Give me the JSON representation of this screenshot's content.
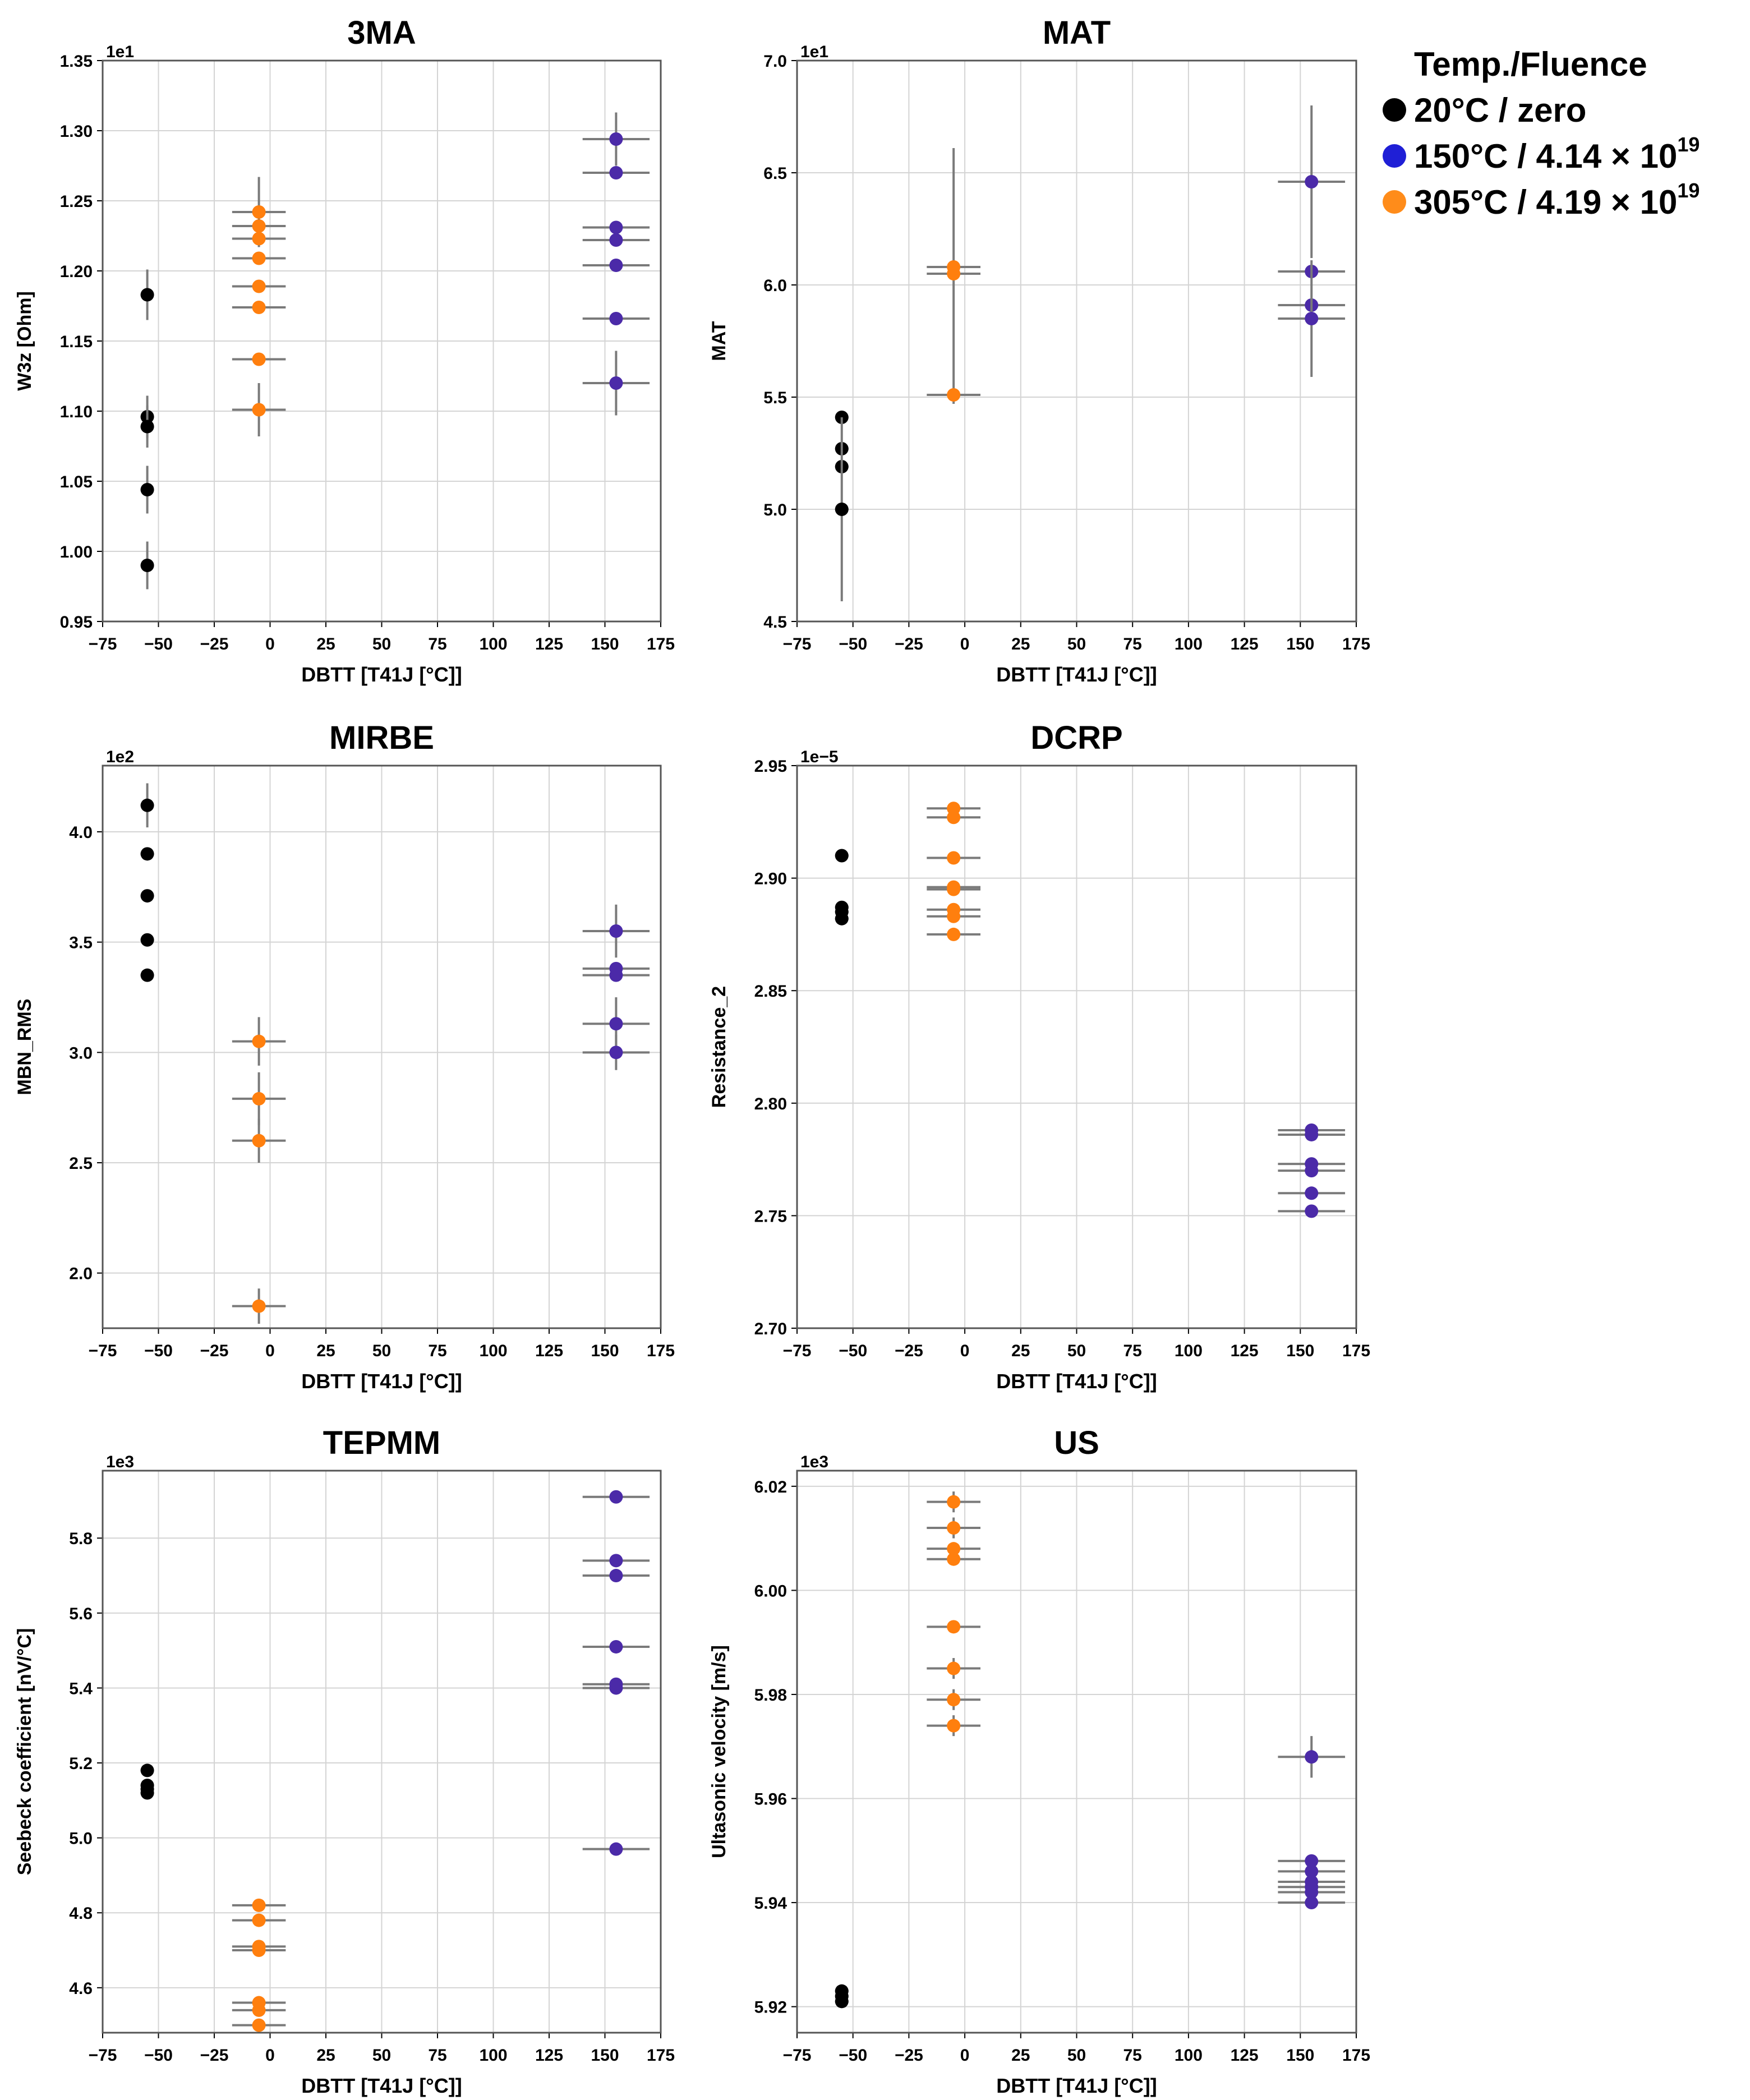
{
  "legend": {
    "title": "Temp./Fluence",
    "items": [
      {
        "label_text": "20°C / zero",
        "color": "#000000"
      },
      {
        "label_text": "150°C / 4.14 × 10",
        "sup": "19",
        "color": "#1f1fd6"
      },
      {
        "label_text": "305°C / 4.19 × 10",
        "sup": "19",
        "color": "#ff8c1a"
      }
    ]
  },
  "colors": {
    "g20": "#000000",
    "g150": "#4b2aa8",
    "g305": "#ff7f0e",
    "errbar": "#7a7a7a",
    "grid": "#d4d4d4"
  },
  "chart_data": [
    {
      "id": "3ma",
      "type": "scatter",
      "title": "3MA",
      "xlabel": "DBTT [T41J [°C]]",
      "ylabel": "W3z [Ohm]",
      "exponent_label": "1e1",
      "xlim": [
        -75,
        175
      ],
      "ylim": [
        0.95,
        1.35
      ],
      "xticks": [
        -75,
        -50,
        -25,
        0,
        25,
        50,
        75,
        100,
        125,
        150,
        175
      ],
      "xtick_labels": [
        "−75",
        "−50",
        "−25",
        "0",
        "25",
        "50",
        "75",
        "100",
        "125",
        "150",
        "175"
      ],
      "yticks": [
        0.95,
        1.0,
        1.05,
        1.1,
        1.15,
        1.2,
        1.25,
        1.3,
        1.35
      ],
      "ytick_labels": [
        "0.95",
        "1.00",
        "1.05",
        "1.10",
        "1.15",
        "1.20",
        "1.25",
        "1.30",
        "1.35"
      ],
      "series": [
        {
          "name": "20°C / zero",
          "color_key": "g20",
          "x": -55,
          "xerr": 3,
          "y": [
            1.183,
            1.096,
            1.089,
            1.044,
            0.99
          ],
          "yerr": [
            0.018,
            0.015,
            0.015,
            0.017,
            0.017
          ]
        },
        {
          "name": "305°C / 4.19 × 10^19",
          "color_key": "g305",
          "x": -5,
          "xerr": 12,
          "y": [
            1.242,
            1.232,
            1.223,
            1.209,
            1.189,
            1.174,
            1.137,
            1.101
          ],
          "yerr": [
            0.025,
            0,
            0,
            0,
            0,
            0,
            0,
            0.019
          ]
        },
        {
          "name": "150°C / 4.14 × 10^19",
          "color_key": "g305b",
          "x": 155,
          "xerr": 15,
          "y": [
            1.294,
            1.27,
            1.231,
            1.222,
            1.204,
            1.166,
            1.12
          ],
          "yerr": [
            0.019,
            0,
            0,
            0,
            0,
            0,
            0.023
          ]
        }
      ]
    },
    {
      "id": "mat",
      "type": "scatter",
      "title": "MAT",
      "xlabel": "DBTT [T41J [°C]]",
      "ylabel": "MAT",
      "exponent_label": "1e1",
      "xlim": [
        -75,
        175
      ],
      "ylim": [
        4.5,
        7.0
      ],
      "xticks": [
        -75,
        -50,
        -25,
        0,
        25,
        50,
        75,
        100,
        125,
        150,
        175
      ],
      "xtick_labels": [
        "−75",
        "−50",
        "−25",
        "0",
        "25",
        "50",
        "75",
        "100",
        "125",
        "150",
        "175"
      ],
      "yticks": [
        4.5,
        5.0,
        5.5,
        6.0,
        6.5,
        7.0
      ],
      "ytick_labels": [
        "4.5",
        "5.0",
        "5.5",
        "6.0",
        "6.5",
        "7.0"
      ],
      "series": [
        {
          "name": "20°C / zero",
          "color_key": "g20",
          "x": -55,
          "xerr": 3,
          "y": [
            5.41,
            5.27,
            5.19,
            5.0
          ],
          "yerr": [
            0,
            0,
            0,
            0.41
          ]
        },
        {
          "name": "305°C / 4.19 × 10^19",
          "color_key": "g305",
          "x": -5,
          "xerr": 12,
          "y": [
            6.08,
            6.05,
            5.51
          ],
          "yerr": [
            0.53,
            0,
            0.04
          ]
        },
        {
          "name": "150°C / 4.14 × 10^19",
          "color_key": "g150",
          "x": 155,
          "xerr": 15,
          "y": [
            6.46,
            6.06,
            5.91,
            5.85
          ],
          "yerr": [
            0.34,
            0,
            0,
            0.26
          ]
        }
      ]
    },
    {
      "id": "mirbe",
      "type": "scatter",
      "title": "MIRBE",
      "xlabel": "DBTT [T41J [°C]]",
      "ylabel": "MBN_RMS",
      "exponent_label": "1e2",
      "xlim": [
        -75,
        175
      ],
      "ylim": [
        1.75,
        4.3
      ],
      "xticks": [
        -75,
        -50,
        -25,
        0,
        25,
        50,
        75,
        100,
        125,
        150,
        175
      ],
      "xtick_labels": [
        "−75",
        "−50",
        "−25",
        "0",
        "25",
        "50",
        "75",
        "100",
        "125",
        "150",
        "175"
      ],
      "yticks": [
        2.0,
        2.5,
        3.0,
        3.5,
        4.0
      ],
      "ytick_labels": [
        "2.0",
        "2.5",
        "3.0",
        "3.5",
        "4.0"
      ],
      "series": [
        {
          "name": "20°C / zero",
          "color_key": "g20",
          "x": -55,
          "xerr": 3,
          "y": [
            4.12,
            3.9,
            3.71,
            3.51,
            3.35
          ],
          "yerr": [
            0.1,
            0,
            0,
            0,
            0
          ]
        },
        {
          "name": "305°C / 4.19 × 10^19",
          "color_key": "g305",
          "x": -5,
          "xerr": 12,
          "y": [
            3.05,
            2.79,
            2.6,
            1.85
          ],
          "yerr": [
            0.11,
            0.12,
            0.1,
            0.08
          ]
        },
        {
          "name": "150°C / 4.14 × 10^19",
          "color_key": "g150",
          "x": 155,
          "xerr": 15,
          "y": [
            3.55,
            3.38,
            3.35,
            3.13,
            3.0
          ],
          "yerr": [
            0.12,
            0,
            0,
            0.12,
            0.08
          ]
        }
      ]
    },
    {
      "id": "dcrp",
      "type": "scatter",
      "title": "DCRP",
      "xlabel": "DBTT [T41J [°C]]",
      "ylabel": "Resistance_2",
      "exponent_label": "1e−5",
      "xlim": [
        -75,
        175
      ],
      "ylim": [
        2.7,
        2.95
      ],
      "xticks": [
        -75,
        -50,
        -25,
        0,
        25,
        50,
        75,
        100,
        125,
        150,
        175
      ],
      "xtick_labels": [
        "−75",
        "−50",
        "−25",
        "0",
        "25",
        "50",
        "75",
        "100",
        "125",
        "150",
        "175"
      ],
      "yticks": [
        2.7,
        2.75,
        2.8,
        2.85,
        2.9,
        2.95
      ],
      "ytick_labels": [
        "2.70",
        "2.75",
        "2.80",
        "2.85",
        "2.90",
        "2.95"
      ],
      "series": [
        {
          "name": "20°C / zero",
          "color_key": "g20",
          "x": -55,
          "xerr": 3,
          "y": [
            2.91,
            2.887,
            2.885,
            2.882
          ],
          "yerr": [
            0,
            0,
            0,
            0
          ]
        },
        {
          "name": "305°C / 4.19 × 10^19",
          "color_key": "g305",
          "x": -5,
          "xerr": 12,
          "y": [
            2.931,
            2.927,
            2.909,
            2.896,
            2.895,
            2.886,
            2.883,
            2.875
          ],
          "yerr": [
            0,
            0,
            0,
            0,
            0,
            0,
            0,
            0
          ]
        },
        {
          "name": "150°C / 4.14 × 10^19",
          "color_key": "g150",
          "x": 155,
          "xerr": 15,
          "y": [
            2.788,
            2.786,
            2.773,
            2.77,
            2.76,
            2.752
          ],
          "yerr": [
            0,
            0,
            0,
            0,
            0,
            0
          ]
        }
      ]
    },
    {
      "id": "tepmm",
      "type": "scatter",
      "title": "TEPMM",
      "xlabel": "DBTT [T41J [°C]]",
      "ylabel": "Seebeck coefficient [nV/°C]",
      "exponent_label": "1e3",
      "xlim": [
        -75,
        175
      ],
      "ylim": [
        4.48,
        5.98
      ],
      "xticks": [
        -75,
        -50,
        -25,
        0,
        25,
        50,
        75,
        100,
        125,
        150,
        175
      ],
      "xtick_labels": [
        "−75",
        "−50",
        "−25",
        "0",
        "25",
        "50",
        "75",
        "100",
        "125",
        "150",
        "175"
      ],
      "yticks": [
        4.6,
        4.8,
        5.0,
        5.2,
        5.4,
        5.6,
        5.8
      ],
      "ytick_labels": [
        "4.6",
        "4.8",
        "5.0",
        "5.2",
        "5.4",
        "5.6",
        "5.8"
      ],
      "series": [
        {
          "name": "20°C / zero",
          "color_key": "g20",
          "x": -55,
          "xerr": 3,
          "y": [
            5.18,
            5.14,
            5.13,
            5.12
          ],
          "yerr": [
            0,
            0,
            0,
            0
          ]
        },
        {
          "name": "305°C / 4.19 × 10^19",
          "color_key": "g305",
          "x": -5,
          "xerr": 12,
          "y": [
            4.82,
            4.78,
            4.71,
            4.7,
            4.56,
            4.54,
            4.5
          ],
          "yerr": [
            0,
            0,
            0,
            0,
            0,
            0,
            0
          ]
        },
        {
          "name": "150°C / 4.14 × 10^19",
          "color_key": "g150",
          "x": 155,
          "xerr": 15,
          "y": [
            5.91,
            5.74,
            5.7,
            5.51,
            5.41,
            5.4,
            4.97
          ],
          "yerr": [
            0,
            0,
            0,
            0,
            0,
            0,
            0
          ]
        }
      ]
    },
    {
      "id": "us",
      "type": "scatter",
      "title": "US",
      "xlabel": "DBTT [T41J [°C]]",
      "ylabel": "Ultasonic velocity [m/s]",
      "exponent_label": "1e3",
      "xlim": [
        -75,
        175
      ],
      "ylim": [
        5.915,
        6.023
      ],
      "xticks": [
        -75,
        -50,
        -25,
        0,
        25,
        50,
        75,
        100,
        125,
        150,
        175
      ],
      "xtick_labels": [
        "−75",
        "−50",
        "−25",
        "0",
        "25",
        "50",
        "75",
        "100",
        "125",
        "150",
        "175"
      ],
      "yticks": [
        5.92,
        5.94,
        5.96,
        5.98,
        6.0,
        6.02
      ],
      "ytick_labels": [
        "5.92",
        "5.94",
        "5.96",
        "5.98",
        "6.00",
        "6.02"
      ],
      "series": [
        {
          "name": "20°C / zero",
          "color_key": "g20",
          "x": -55,
          "xerr": 3,
          "y": [
            5.923,
            5.922,
            5.921
          ],
          "yerr": [
            0,
            0,
            0
          ]
        },
        {
          "name": "305°C / 4.19 × 10^19",
          "color_key": "g305",
          "x": -5,
          "xerr": 12,
          "y": [
            6.017,
            6.012,
            6.008,
            6.006,
            5.993,
            5.985,
            5.979,
            5.974
          ],
          "yerr": [
            0.002,
            0.002,
            0,
            0,
            0,
            0.002,
            0.002,
            0.002
          ]
        },
        {
          "name": "150°C / 4.14 × 10^19",
          "color_key": "g150",
          "x": 155,
          "xerr": 15,
          "y": [
            5.968,
            5.948,
            5.946,
            5.944,
            5.943,
            5.942,
            5.94
          ],
          "yerr": [
            0.004,
            0,
            0,
            0,
            0,
            0,
            0
          ]
        }
      ]
    }
  ]
}
